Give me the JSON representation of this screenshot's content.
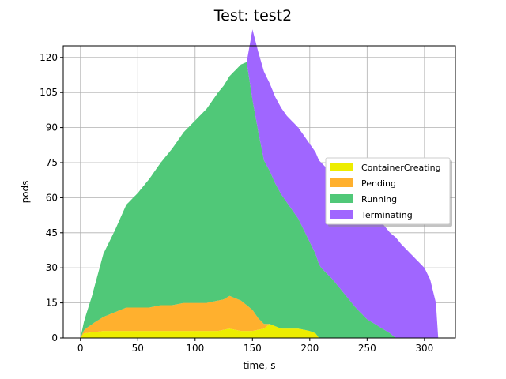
{
  "chart_data": {
    "type": "area",
    "title": "Test: test2",
    "xlabel": "time, s",
    "ylabel": "pods",
    "xlim": [
      -15,
      327
    ],
    "ylim": [
      0,
      125
    ],
    "xticks": [
      0,
      50,
      100,
      150,
      200,
      250,
      300
    ],
    "yticks": [
      0,
      15,
      30,
      45,
      60,
      75,
      90,
      105,
      120
    ],
    "grid": true,
    "legend_position": "right",
    "stacked": true,
    "series": [
      {
        "name": "ContainerCreating",
        "color": "#eded00",
        "points": [
          [
            0,
            0
          ],
          [
            3,
            2
          ],
          [
            20,
            3
          ],
          [
            40,
            3
          ],
          [
            60,
            3
          ],
          [
            80,
            3
          ],
          [
            100,
            3
          ],
          [
            120,
            3
          ],
          [
            130,
            4
          ],
          [
            140,
            3
          ],
          [
            150,
            3
          ],
          [
            160,
            4
          ],
          [
            165,
            6
          ],
          [
            170,
            5
          ],
          [
            175,
            4
          ],
          [
            190,
            4
          ],
          [
            200,
            3
          ],
          [
            205,
            2
          ],
          [
            208,
            0
          ]
        ]
      },
      {
        "name": "Pending",
        "color": "#ffb02e",
        "points": [
          [
            0,
            0
          ],
          [
            5,
            2
          ],
          [
            12,
            4
          ],
          [
            20,
            6
          ],
          [
            30,
            8
          ],
          [
            40,
            10
          ],
          [
            50,
            10
          ],
          [
            60,
            10
          ],
          [
            70,
            11
          ],
          [
            80,
            11
          ],
          [
            90,
            12
          ],
          [
            100,
            12
          ],
          [
            110,
            12
          ],
          [
            120,
            13
          ],
          [
            125,
            13
          ],
          [
            130,
            14
          ],
          [
            140,
            13
          ],
          [
            150,
            9
          ],
          [
            155,
            5
          ],
          [
            160,
            2
          ],
          [
            165,
            0
          ]
        ]
      },
      {
        "name": "Running",
        "color": "#50c878",
        "points": [
          [
            0,
            0
          ],
          [
            10,
            12
          ],
          [
            20,
            27
          ],
          [
            30,
            35
          ],
          [
            40,
            44
          ],
          [
            50,
            49
          ],
          [
            60,
            55
          ],
          [
            70,
            61
          ],
          [
            80,
            67
          ],
          [
            90,
            73
          ],
          [
            100,
            78
          ],
          [
            110,
            83
          ],
          [
            120,
            89
          ],
          [
            130,
            94
          ],
          [
            140,
            101
          ],
          [
            145,
            104
          ],
          [
            150,
            90
          ],
          [
            160,
            70
          ],
          [
            170,
            61
          ],
          [
            180,
            54
          ],
          [
            190,
            47
          ],
          [
            200,
            38
          ],
          [
            210,
            30
          ],
          [
            220,
            25
          ],
          [
            230,
            19
          ],
          [
            240,
            13
          ],
          [
            250,
            8
          ],
          [
            260,
            5
          ],
          [
            270,
            2
          ],
          [
            275,
            0
          ]
        ]
      },
      {
        "name": "Terminating",
        "color": "#a066ff",
        "points": [
          [
            0,
            0
          ],
          [
            145,
            0
          ],
          [
            150,
            30
          ],
          [
            160,
            38
          ],
          [
            170,
            37
          ],
          [
            180,
            37
          ],
          [
            190,
            39
          ],
          [
            200,
            42
          ],
          [
            210,
            45
          ],
          [
            220,
            45
          ],
          [
            230,
            45
          ],
          [
            240,
            47
          ],
          [
            250,
            46
          ],
          [
            260,
            46
          ],
          [
            270,
            43
          ],
          [
            275,
            43
          ],
          [
            280,
            40
          ],
          [
            290,
            35
          ],
          [
            300,
            30
          ],
          [
            305,
            25
          ],
          [
            310,
            15
          ],
          [
            312,
            0
          ]
        ]
      }
    ]
  }
}
